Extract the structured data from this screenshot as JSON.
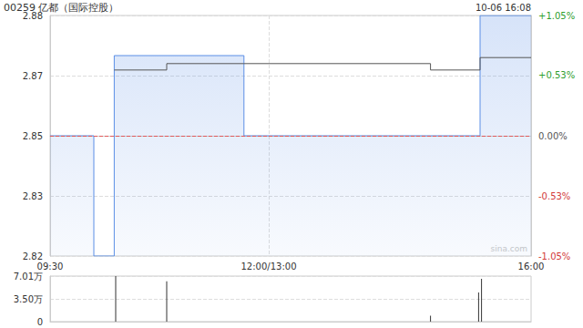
{
  "chart_data": [
    {
      "type": "line",
      "title": "00259 亿都（国际控股）",
      "subtitle": "10-06 16:08",
      "watermark": "sina.com",
      "x": [
        0,
        30,
        44,
        80,
        133,
        261,
        295,
        330
      ],
      "series": [
        {
          "color": "#5a8ee6",
          "values": [
            2.85,
            2.82,
            2.87,
            2.87,
            2.85,
            2.85,
            2.88,
            2.88
          ],
          "line_style": "step"
        },
        {
          "color": "#555555",
          "values": [
            null,
            null,
            2.8664,
            2.868,
            2.868,
            2.8664,
            2.8695,
            2.8695
          ],
          "line_style": "step"
        }
      ],
      "xlim": [
        0,
        330
      ],
      "xticks": [
        {
          "value": 0,
          "label": "09:30"
        },
        {
          "value": 150,
          "label": "12:00/13:00"
        },
        {
          "value": 330,
          "label": "16:00"
        }
      ],
      "ylim": [
        2.82,
        2.88
      ],
      "yticks": [
        2.82,
        {
          "value": 2.835,
          "label": "2.83"
        },
        2.85,
        {
          "value": 2.865,
          "label": "2.87"
        },
        2.88
      ],
      "y2lim": [
        -1.05,
        1.05
      ],
      "y2ticks": [
        {
          "value": -1.05,
          "label": "-1.05%"
        },
        {
          "value": -0.53,
          "label": "-0.53%"
        },
        {
          "value": 0,
          "label": "0.00%"
        },
        {
          "value": 0.53,
          "label": "+0.53%"
        },
        {
          "value": 1.05,
          "label": "+1.05%"
        }
      ],
      "grid": true
    },
    {
      "type": "bar",
      "x": [
        45,
        80,
        261,
        294,
        296
      ],
      "values": [
        70100,
        62000,
        9000,
        45000,
        66000
      ],
      "color": "#333333",
      "xlim": [
        0,
        330
      ],
      "ylim": [
        0,
        70100
      ],
      "yticks": [
        0,
        {
          "value": 35050,
          "label": "3.50万"
        },
        {
          "value": 70100,
          "label": "7.01万"
        }
      ],
      "tick_labels": "y",
      "grid": true
    }
  ]
}
